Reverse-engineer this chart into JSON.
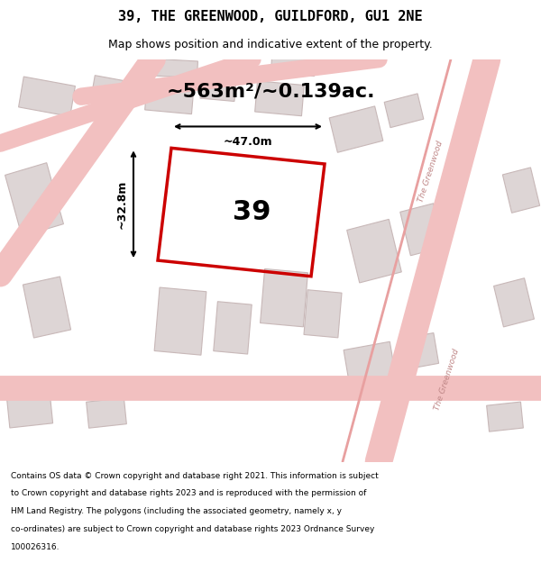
{
  "title": "39, THE GREENWOOD, GUILDFORD, GU1 2NE",
  "subtitle": "Map shows position and indicative extent of the property.",
  "area_text": "~563m²/~0.139ac.",
  "plot_number": "39",
  "dim_width": "~47.0m",
  "dim_height": "~32.8m",
  "footer_lines": [
    "Contains OS data © Crown copyright and database right 2021. This information is subject",
    "to Crown copyright and database rights 2023 and is reproduced with the permission of",
    "HM Land Registry. The polygons (including the associated geometry, namely x, y",
    "co-ordinates) are subject to Crown copyright and database rights 2023 Ordnance Survey",
    "100026316."
  ],
  "map_bg": "#f8f5f5",
  "plot_color": "#cc0000",
  "road_color": "#f2c0c0",
  "building_color": "#ddd5d5",
  "building_edge": "#c8b8b8",
  "title_fontsize": 11,
  "subtitle_fontsize": 9,
  "area_fontsize": 16,
  "plot_label_fontsize": 22,
  "dim_fontsize": 9,
  "footer_fontsize": 6.5
}
